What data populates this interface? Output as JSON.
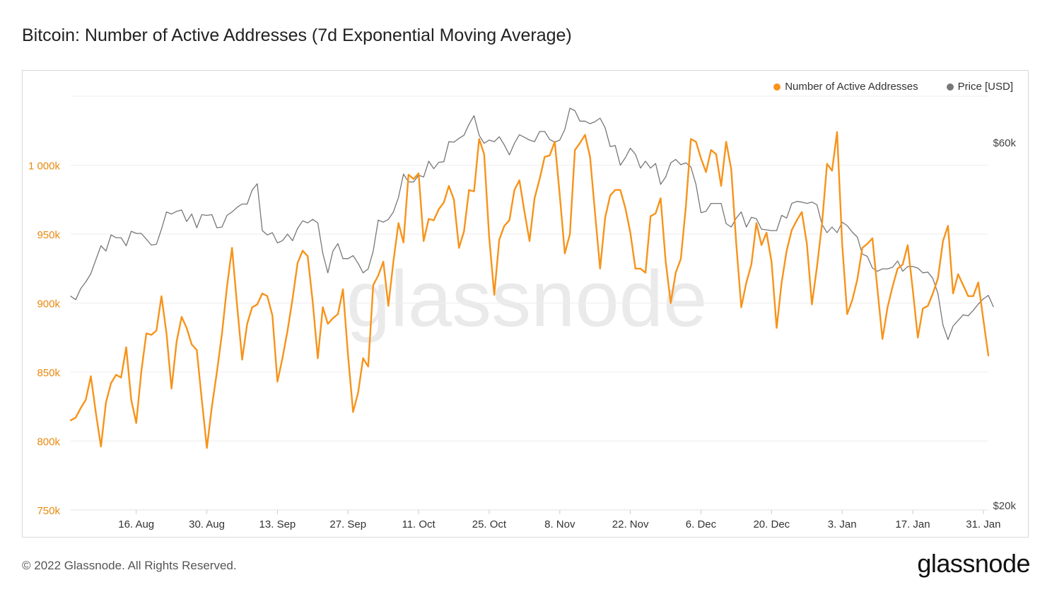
{
  "title": "Bitcoin: Number of Active Addresses (7d Exponential Moving Average)",
  "footer": {
    "copyright": "© 2022 Glassnode. All Rights Reserved.",
    "logo": "glassnode"
  },
  "watermark": "glassnode",
  "legend": [
    {
      "label": "Number of Active Addresses",
      "color": "#f7931a"
    },
    {
      "label": "Price [USD]",
      "color": "#777777"
    }
  ],
  "colors": {
    "addresses": "#f7931a",
    "price": "#777777",
    "grid": "#eeeeee",
    "left_axis_text": "#e8890f",
    "right_axis_text": "#444444"
  },
  "chart_data": {
    "type": "line",
    "x_axis": {
      "type": "date",
      "range": [
        "2021-08-03",
        "2022-02-01"
      ],
      "tick_labels": [
        "16. Aug",
        "30. Aug",
        "13. Sep",
        "27. Sep",
        "11. Oct",
        "25. Oct",
        "8. Nov",
        "22. Nov",
        "6. Dec",
        "20. Dec",
        "3. Jan",
        "17. Jan",
        "31. Jan"
      ],
      "tick_dates": [
        "2021-08-16",
        "2021-08-30",
        "2021-09-13",
        "2021-09-27",
        "2021-10-11",
        "2021-10-25",
        "2021-11-08",
        "2021-11-22",
        "2021-12-06",
        "2021-12-20",
        "2022-01-03",
        "2022-01-17",
        "2022-01-31"
      ]
    },
    "y_left": {
      "label": "",
      "range": [
        750000,
        1050000
      ],
      "ticks": [
        750000,
        800000,
        850000,
        900000,
        950000,
        1000000
      ],
      "tick_labels": [
        "750k",
        "800k",
        "850k",
        "900k",
        "950k",
        "1 000k"
      ],
      "scale": "linear"
    },
    "y_right": {
      "label": "",
      "range": [
        20000,
        70000
      ],
      "ticks": [
        20000,
        60000
      ],
      "tick_labels": [
        "$20k",
        "$60k"
      ],
      "scale": "log"
    },
    "grid": true,
    "legend_position": "top-right",
    "series": [
      {
        "name": "Number of Active Addresses",
        "axis": "left",
        "start_date": "2021-08-03",
        "step_days": 1,
        "values": [
          815000,
          817000,
          824000,
          830000,
          847000,
          820000,
          796000,
          828000,
          842000,
          848000,
          846000,
          868000,
          830000,
          813000,
          850000,
          878000,
          877000,
          880000,
          905000,
          878000,
          838000,
          872000,
          890000,
          882000,
          870000,
          866000,
          830000,
          795000,
          825000,
          850000,
          878000,
          912000,
          940000,
          898000,
          859000,
          885000,
          897000,
          899000,
          907000,
          905000,
          891000,
          843000,
          860000,
          880000,
          903000,
          929000,
          938000,
          934000,
          901000,
          860000,
          897000,
          885000,
          889000,
          892000,
          910000,
          862000,
          821000,
          835000,
          860000,
          854000,
          913000,
          920000,
          930000,
          898000,
          930000,
          958000,
          944000,
          993000,
          990000,
          994000,
          945000,
          961000,
          960000,
          968000,
          973000,
          985000,
          975000,
          940000,
          952000,
          982000,
          981000,
          1019000,
          1008000,
          948000,
          906000,
          946000,
          956000,
          960000,
          982000,
          989000,
          966000,
          945000,
          976000,
          990000,
          1006000,
          1007000,
          1017000,
          978000,
          936000,
          950000,
          1011000,
          1016000,
          1022000,
          1006000,
          965000,
          925000,
          962000,
          978000,
          982000,
          982000,
          969000,
          951000,
          925000,
          925000,
          922000,
          963000,
          965000,
          976000,
          930000,
          900000,
          922000,
          932000,
          970000,
          1019000,
          1017000,
          1005000,
          995000,
          1011000,
          1008000,
          985000,
          1017000,
          997000,
          943000,
          897000,
          915000,
          928000,
          958000,
          942000,
          951000,
          930000,
          882000,
          915000,
          938000,
          953000,
          960000,
          966000,
          943000,
          899000,
          926000,
          957000,
          1001000,
          996000,
          1024000,
          943000,
          892000,
          902000,
          917000,
          940000,
          943000,
          947000,
          910000,
          874000,
          897000,
          912000,
          925000,
          928000,
          942000,
          910000,
          875000,
          896000,
          898000,
          907000,
          918000,
          945000,
          956000,
          907000,
          921000,
          913000,
          905000,
          905000,
          915000,
          888000,
          862000
        ]
      },
      {
        "name": "Price [USD]",
        "axis": "right",
        "start_date": "2021-08-03",
        "step_days": 1,
        "values": [
          38200,
          37800,
          39100,
          39900,
          40900,
          42700,
          44500,
          43800,
          46000,
          45600,
          45600,
          44500,
          46500,
          46200,
          46200,
          45400,
          44600,
          44700,
          46800,
          49300,
          49000,
          49400,
          49600,
          47900,
          49000,
          47000,
          48900,
          48800,
          48900,
          47000,
          47100,
          48800,
          49300,
          50000,
          50500,
          50500,
          52700,
          53700,
          46600,
          46000,
          46300,
          44900,
          45200,
          46100,
          45200,
          46900,
          48000,
          47700,
          48200,
          47700,
          43500,
          41000,
          43800,
          44800,
          42800,
          42800,
          43200,
          42200,
          41000,
          41500,
          43800,
          48100,
          47800,
          48200,
          49300,
          51500,
          55300,
          54000,
          54000,
          55100,
          54800,
          57500,
          56200,
          57300,
          57400,
          61000,
          60900,
          61600,
          62200,
          64300,
          66000,
          62200,
          60700,
          61300,
          61000,
          61900,
          60400,
          58600,
          60700,
          62300,
          61800,
          61300,
          61000,
          62900,
          62900,
          61400,
          60900,
          61300,
          63300,
          67500,
          67000,
          64900,
          64900,
          64400,
          64800,
          65500,
          63600,
          60100,
          60300,
          56800,
          58100,
          59800,
          58700,
          56300,
          57500,
          56300,
          57100,
          53600,
          54800,
          57200,
          57800,
          56900,
          57200,
          56500,
          53600,
          49200,
          49400,
          50600,
          50600,
          50600,
          47600,
          47100,
          48400,
          49300,
          47100,
          48500,
          48300,
          46800,
          46700,
          46600,
          46600,
          48800,
          48400,
          50600,
          50900,
          50800,
          50600,
          50800,
          50400,
          47500,
          46300,
          47100,
          46300,
          47800,
          47300,
          46400,
          45700,
          43400,
          43100,
          41600,
          41200,
          41500,
          41500,
          41700,
          42500,
          41200,
          41800,
          41800,
          41600,
          41000,
          41100,
          40300,
          38500,
          35000,
          33500,
          34900,
          35500,
          36100,
          36000,
          36600,
          37300,
          37900,
          38300,
          37000
        ]
      }
    ]
  }
}
